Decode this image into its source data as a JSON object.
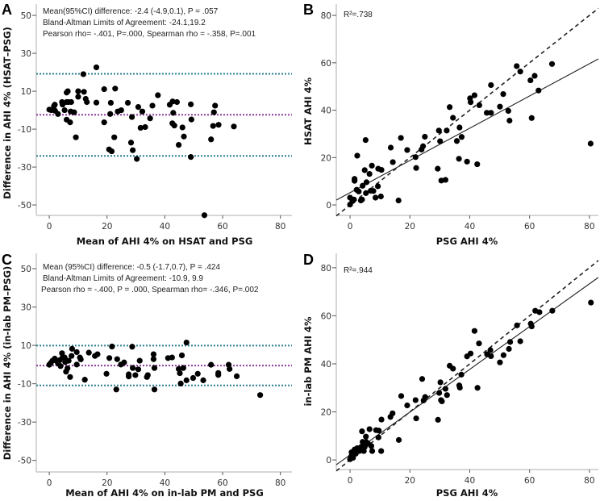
{
  "colors": {
    "points": "#000000",
    "mean_line": "#8e3a9e",
    "limit_line": "#2a7f94",
    "axis": "#c8c8c8"
  },
  "chart_data": [
    {
      "panel": "A",
      "type": "scatter",
      "kind": "bland-altman",
      "xlabel": "Mean of AHI 4% on HSAT and PSG",
      "ylabel": "Difference in AHI 4% (HSAT–PSG)",
      "xlim": [
        -4.5,
        84
      ],
      "ylim": [
        -55.5,
        56
      ],
      "xticks": [
        0,
        20,
        40,
        60,
        80
      ],
      "yticks": [
        50,
        30,
        10,
        -10,
        -30,
        -50
      ],
      "annotations": [
        "Mean(95%CI) difference: -2.4 (-4.9,0.1), P = .057",
        "Bland-Altman Limits of Agreement: -24.1,19.2",
        "Pearson rho= -.401, P=.000, Spearman rho = -.358, P=.001"
      ],
      "mean_diff": -2.4,
      "limits": [
        -24.1,
        19.2
      ],
      "points": [
        [
          0,
          0.3
        ],
        [
          0.7,
          0
        ],
        [
          1.6,
          2.1
        ],
        [
          1.9,
          2.9
        ],
        [
          2,
          -0.3
        ],
        [
          3,
          -2
        ],
        [
          4.4,
          4.3
        ],
        [
          4.6,
          3
        ],
        [
          5.3,
          0
        ],
        [
          6,
          9.3
        ],
        [
          6.4,
          10
        ],
        [
          6,
          4.3
        ],
        [
          6.7,
          4.3
        ],
        [
          6,
          -5
        ],
        [
          7.2,
          -6.4
        ],
        [
          7.6,
          4.3
        ],
        [
          7.4,
          -0.7
        ],
        [
          8.6,
          -1.1
        ],
        [
          9.2,
          -14.3
        ],
        [
          10,
          10
        ],
        [
          10,
          7.1
        ],
        [
          11.8,
          19
        ],
        [
          12,
          9.7
        ],
        [
          12.6,
          6
        ],
        [
          13,
          4.3
        ],
        [
          16.3,
          22.6
        ],
        [
          16.3,
          4
        ],
        [
          19,
          11.1
        ],
        [
          19,
          -6.4
        ],
        [
          20.7,
          -20.7
        ],
        [
          21.6,
          -21.7
        ],
        [
          21.3,
          3.9
        ],
        [
          21.1,
          -2
        ],
        [
          22.8,
          11.4
        ],
        [
          22.5,
          -14.3
        ],
        [
          23.7,
          -0.7
        ],
        [
          24.9,
          0
        ],
        [
          27.2,
          3.9
        ],
        [
          28.3,
          -17.1
        ],
        [
          28.6,
          -3.6
        ],
        [
          28.9,
          -21.1
        ],
        [
          30.3,
          -25.7
        ],
        [
          30.8,
          1.7
        ],
        [
          31.6,
          -9.3
        ],
        [
          32.2,
          -0.7
        ],
        [
          33.2,
          -8.9
        ],
        [
          34.9,
          -4.3
        ],
        [
          35.7,
          2.4
        ],
        [
          37.6,
          7.9
        ],
        [
          41.7,
          2.9
        ],
        [
          42.7,
          4.6
        ],
        [
          42.9,
          -1.4
        ],
        [
          42.6,
          -6.9
        ],
        [
          43.3,
          -8.1
        ],
        [
          44.2,
          4.3
        ],
        [
          44.8,
          -18.3
        ],
        [
          46.1,
          -9.1
        ],
        [
          46.6,
          -13.9
        ],
        [
          49,
          3.1
        ],
        [
          49.2,
          -4.9
        ],
        [
          49,
          -24.7
        ],
        [
          53.7,
          -55.4
        ],
        [
          56,
          -15.4
        ],
        [
          57,
          -1.1
        ],
        [
          57.4,
          2.4
        ],
        [
          56.7,
          -8.3
        ],
        [
          58.6,
          -7.7
        ],
        [
          63.9,
          -8.6
        ]
      ]
    },
    {
      "panel": "B",
      "type": "scatter",
      "kind": "regression",
      "xlabel": "PSG AHI 4%",
      "ylabel": "HSAT AHI 4%",
      "xlim": [
        -4.6,
        83
      ],
      "ylim": [
        -4.4,
        84.8
      ],
      "xticks": [
        0,
        20,
        40,
        60,
        80
      ],
      "yticks": [
        80,
        60,
        40,
        20,
        0
      ],
      "annotations": [
        "R²=.738"
      ],
      "fit": {
        "intercept": 5.2,
        "slope": 0.68
      },
      "identity_line": true,
      "points": [
        [
          0,
          3.1
        ],
        [
          0,
          0.2
        ],
        [
          0.8,
          1.6
        ],
        [
          1.3,
          2.3
        ],
        [
          1.5,
          11
        ],
        [
          1.5,
          10.2
        ],
        [
          2.4,
          20.8
        ],
        [
          2.2,
          6.4
        ],
        [
          2.9,
          5.7
        ],
        [
          3.6,
          1.9
        ],
        [
          4,
          2.3
        ],
        [
          4.2,
          8.1
        ],
        [
          4.9,
          14.7
        ],
        [
          5.2,
          27.4
        ],
        [
          5.5,
          9.6
        ],
        [
          5.3,
          5
        ],
        [
          6.5,
          13.1
        ],
        [
          6.9,
          6
        ],
        [
          7.3,
          16.6
        ],
        [
          7.8,
          5.9
        ],
        [
          8.5,
          3.1
        ],
        [
          9.3,
          7.9
        ],
        [
          9.4,
          15.3
        ],
        [
          10.5,
          14.8
        ],
        [
          10.3,
          3.6
        ],
        [
          13.6,
          24.2
        ],
        [
          14.3,
          18.1
        ],
        [
          16.2,
          1.9
        ],
        [
          17,
          28.3
        ],
        [
          19.1,
          23.2
        ],
        [
          21.9,
          20.2
        ],
        [
          22.1,
          15.6
        ],
        [
          24.4,
          24.8
        ],
        [
          23.9,
          23.4
        ],
        [
          25,
          28.8
        ],
        [
          29.3,
          15.3
        ],
        [
          29.7,
          31.4
        ],
        [
          30.1,
          26.9
        ],
        [
          30.5,
          10.3
        ],
        [
          31.9,
          10.6
        ],
        [
          32.3,
          31.4
        ],
        [
          33.3,
          41.3
        ],
        [
          34.4,
          36.8
        ],
        [
          35.7,
          27
        ],
        [
          36.6,
          32.7
        ],
        [
          36.4,
          19.5
        ],
        [
          37.3,
          28.7
        ],
        [
          39.1,
          18.3
        ],
        [
          40.1,
          45
        ],
        [
          40.3,
          43.4
        ],
        [
          41.6,
          46.3
        ],
        [
          42.5,
          17.2
        ],
        [
          43.2,
          42.1
        ],
        [
          45.7,
          38.9
        ],
        [
          47.1,
          38.9
        ],
        [
          47.1,
          50.6
        ],
        [
          50.1,
          41.5
        ],
        [
          51.2,
          46.8
        ],
        [
          52.9,
          39.7
        ],
        [
          53.3,
          35.6
        ],
        [
          55.7,
          58.6
        ],
        [
          56.9,
          56.3
        ],
        [
          60.3,
          52.6
        ],
        [
          60.7,
          36.7
        ],
        [
          61.7,
          54.5
        ],
        [
          63,
          48.3
        ],
        [
          67.5,
          59.5
        ],
        [
          80.4,
          25.9
        ]
      ]
    },
    {
      "panel": "C",
      "type": "scatter",
      "kind": "bland-altman",
      "xlabel": "Mean of AHI 4% on in-lab PM and PSG",
      "ylabel": "Difference in AHI 4% (in-lab PM–PSG)",
      "xlim": [
        -4.5,
        84
      ],
      "ylim": [
        -56,
        58
      ],
      "xticks": [
        0,
        20,
        40,
        60,
        80
      ],
      "yticks": [
        50,
        30,
        10,
        -10,
        -30,
        -50
      ],
      "annotations": [
        "Mean (95%CI) difference: -0.5 (-1.7,0.7), P = .424",
        "Bland-Altman Limits of Agreement: -10.9, 9.9",
        "Pearson rho = -.400, P = .000, Spearman rho= -.346, P=.002"
      ],
      "mean_diff": -0.5,
      "limits": [
        -10.9,
        9.9
      ],
      "points": [
        [
          0,
          -0.1
        ],
        [
          0.5,
          0.8
        ],
        [
          1.1,
          2
        ],
        [
          1.9,
          3.1
        ],
        [
          2.5,
          2
        ],
        [
          3,
          0.6
        ],
        [
          3.6,
          2.3
        ],
        [
          3.9,
          -0.8
        ],
        [
          4.4,
          5.9
        ],
        [
          4.6,
          3.7
        ],
        [
          5.3,
          3.7
        ],
        [
          5.5,
          1.3
        ],
        [
          5.8,
          -3.7
        ],
        [
          6.3,
          -2
        ],
        [
          6.7,
          2
        ],
        [
          7.2,
          -6.5
        ],
        [
          7.7,
          4.5
        ],
        [
          7.9,
          8.2
        ],
        [
          9.5,
          6.5
        ],
        [
          9.5,
          0
        ],
        [
          10.6,
          3.7
        ],
        [
          10.9,
          2.7
        ],
        [
          12.3,
          -7.9
        ],
        [
          13.7,
          6.2
        ],
        [
          15.8,
          4.5
        ],
        [
          16.7,
          5.4
        ],
        [
          19.8,
          -4.8
        ],
        [
          20.8,
          3.4
        ],
        [
          21.7,
          9.4
        ],
        [
          23.2,
          -13
        ],
        [
          23.5,
          2.8
        ],
        [
          24.8,
          0
        ],
        [
          25.9,
          1.1
        ],
        [
          27.5,
          -6.2
        ],
        [
          27.5,
          -5.1
        ],
        [
          28.7,
          9.3
        ],
        [
          28.9,
          -1.8
        ],
        [
          29.8,
          -5.5
        ],
        [
          30.8,
          -2.5
        ],
        [
          31.3,
          2
        ],
        [
          33.8,
          -6.5
        ],
        [
          34.1,
          -5.5
        ],
        [
          36.1,
          5.4
        ],
        [
          36.1,
          2.8
        ],
        [
          36.4,
          -1.8
        ],
        [
          36.4,
          -13
        ],
        [
          41.1,
          3.4
        ],
        [
          42.5,
          3.7
        ],
        [
          44.8,
          -2.3
        ],
        [
          45.2,
          -4.5
        ],
        [
          45.5,
          -9.9
        ],
        [
          45.9,
          4.8
        ],
        [
          46.4,
          -1.8
        ],
        [
          47.5,
          11.5
        ],
        [
          47.5,
          -8.2
        ],
        [
          49.8,
          -7
        ],
        [
          51.4,
          -4.8
        ],
        [
          53.3,
          -8.2
        ],
        [
          56,
          -0.1
        ],
        [
          58.5,
          -5.4
        ],
        [
          58.5,
          -4.4
        ],
        [
          62.1,
          -0.1
        ],
        [
          62.4,
          -2.3
        ],
        [
          64.9,
          -6.1
        ],
        [
          73,
          -15.9
        ]
      ]
    },
    {
      "panel": "D",
      "type": "scatter",
      "kind": "regression",
      "xlabel": "PSG AHI 4%",
      "ylabel": "in-lab PM AHI 4%",
      "xlim": [
        -4.6,
        83
      ],
      "ylim": [
        -4,
        86
      ],
      "xticks": [
        0,
        20,
        40,
        60,
        80
      ],
      "yticks": [
        80,
        60,
        40,
        20,
        0
      ],
      "annotations": [
        "R²=.944"
      ],
      "fit": {
        "intercept": 2.1,
        "slope": 0.89
      },
      "identity_line": true,
      "points": [
        [
          0,
          0.3
        ],
        [
          0.4,
          1.5
        ],
        [
          0.5,
          3.2
        ],
        [
          1,
          0.9
        ],
        [
          1.5,
          4.3
        ],
        [
          1.9,
          2.6
        ],
        [
          2.4,
          4.9
        ],
        [
          3.1,
          3.7
        ],
        [
          3.7,
          5.4
        ],
        [
          4,
          11.9
        ],
        [
          4.2,
          7.5
        ],
        [
          4.6,
          3.7
        ],
        [
          4.9,
          5.4
        ],
        [
          5.3,
          9.7
        ],
        [
          5.4,
          7.5
        ],
        [
          6,
          6.8
        ],
        [
          6.5,
          12.8
        ],
        [
          7.1,
          5.8
        ],
        [
          7.4,
          3.7
        ],
        [
          8.7,
          12.4
        ],
        [
          9.6,
          12.2
        ],
        [
          9.5,
          9.4
        ],
        [
          10.4,
          3.7
        ],
        [
          10.5,
          16.8
        ],
        [
          13.5,
          17.9
        ],
        [
          14.2,
          19.4
        ],
        [
          16.3,
          8.3
        ],
        [
          17.1,
          26.6
        ],
        [
          19.1,
          22.7
        ],
        [
          21.9,
          24.9
        ],
        [
          22.1,
          17.3
        ],
        [
          24.1,
          33.7
        ],
        [
          24.6,
          24.8
        ],
        [
          25.1,
          26.2
        ],
        [
          29.4,
          16.7
        ],
        [
          29.8,
          27.9
        ],
        [
          30.2,
          32.3
        ],
        [
          30.4,
          24.9
        ],
        [
          30.7,
          24.4
        ],
        [
          31.9,
          29.6
        ],
        [
          32.4,
          27
        ],
        [
          33.3,
          39.2
        ],
        [
          34.4,
          38
        ],
        [
          36.5,
          31
        ],
        [
          36.7,
          30.1
        ],
        [
          37.2,
          35.5
        ],
        [
          39.1,
          43.1
        ],
        [
          40.3,
          44.3
        ],
        [
          41.6,
          53.7
        ],
        [
          42.6,
          30
        ],
        [
          43.1,
          48.5
        ],
        [
          45.8,
          44
        ],
        [
          46.9,
          45.7
        ],
        [
          47.1,
          43.2
        ],
        [
          50.1,
          40.6
        ],
        [
          51.3,
          43.6
        ],
        [
          53.1,
          46.2
        ],
        [
          53.5,
          49.1
        ],
        [
          55.8,
          56
        ],
        [
          56.9,
          49.4
        ],
        [
          60.4,
          56.7
        ],
        [
          60.7,
          55.6
        ],
        [
          61.9,
          62.1
        ],
        [
          63.3,
          61.5
        ],
        [
          67.6,
          62.1
        ],
        [
          80.5,
          65.5
        ]
      ]
    }
  ]
}
